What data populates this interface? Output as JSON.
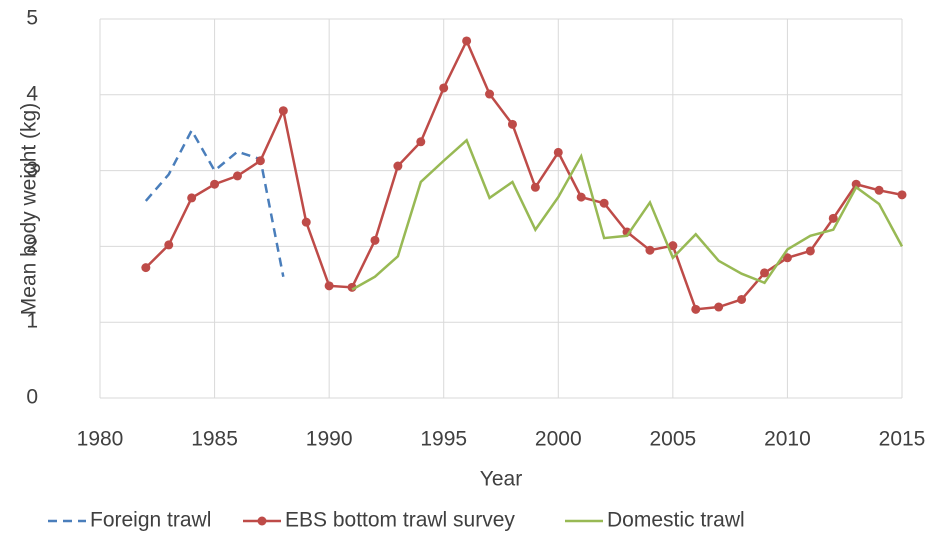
{
  "chart_data": {
    "type": "line",
    "x_label": "Year",
    "y_label": "Mean body weight (kg)",
    "x": [
      1982,
      1983,
      1984,
      1985,
      1986,
      1987,
      1988,
      1989,
      1990,
      1991,
      1992,
      1993,
      1994,
      1995,
      1996,
      1997,
      1998,
      1999,
      2000,
      2001,
      2002,
      2003,
      2004,
      2005,
      2006,
      2007,
      2008,
      2009,
      2010,
      2011,
      2012,
      2013,
      2014,
      2015
    ],
    "series": [
      {
        "name": "Foreign trawl",
        "color": "#4a7ebb",
        "dashed": true,
        "marker": false,
        "values": [
          2.6,
          2.95,
          3.53,
          3.0,
          3.25,
          3.15,
          1.6,
          null,
          null,
          null,
          null,
          null,
          null,
          null,
          null,
          null,
          null,
          null,
          null,
          null,
          null,
          null,
          null,
          null,
          null,
          null,
          null,
          null,
          null,
          null,
          null,
          null,
          null,
          null
        ]
      },
      {
        "name": "EBS bottom trawl survey",
        "color": "#be4b48",
        "dashed": false,
        "marker": true,
        "values": [
          1.72,
          2.02,
          2.64,
          2.82,
          2.93,
          3.13,
          3.79,
          2.32,
          1.48,
          1.46,
          2.08,
          3.06,
          3.38,
          4.09,
          4.71,
          4.01,
          3.61,
          2.78,
          3.24,
          2.65,
          2.57,
          2.19,
          1.95,
          2.01,
          1.17,
          1.2,
          1.3,
          1.65,
          1.85,
          1.94,
          2.37,
          2.82,
          2.74,
          2.68
        ]
      },
      {
        "name": "Domestic trawl",
        "color": "#98b954",
        "dashed": false,
        "marker": false,
        "values": [
          null,
          null,
          null,
          null,
          null,
          null,
          null,
          null,
          null,
          1.43,
          1.6,
          1.87,
          2.85,
          3.13,
          3.4,
          2.64,
          2.85,
          2.22,
          2.65,
          3.19,
          2.11,
          2.14,
          2.58,
          1.85,
          2.16,
          1.81,
          1.64,
          1.52,
          1.96,
          2.14,
          2.22,
          2.78,
          2.56,
          2.0
        ]
      }
    ],
    "xlim": [
      1980,
      2015
    ],
    "xticks": [
      1980,
      1985,
      1990,
      1995,
      2000,
      2005,
      2010,
      2015
    ],
    "ylim": [
      0,
      5
    ],
    "yticks": [
      0,
      1,
      2,
      3,
      4,
      5
    ],
    "grid": true,
    "legend": "bottom"
  }
}
